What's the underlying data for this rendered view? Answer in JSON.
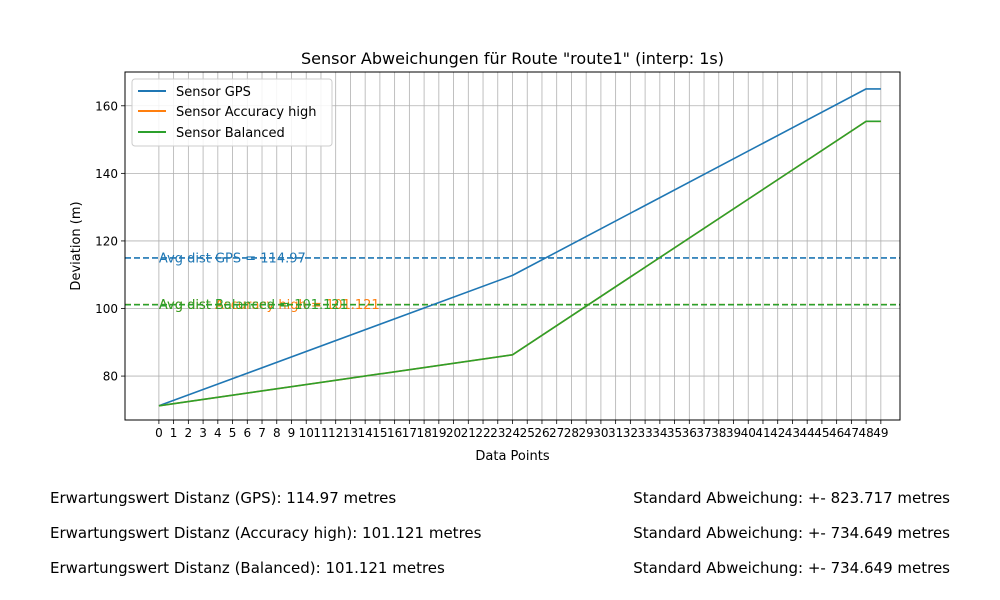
{
  "chart_data": {
    "type": "line",
    "title": "Sensor Abweichungen für Route \"route1\" (interp: 1s)",
    "xlabel": "Data Points",
    "ylabel": "Deviation (m)",
    "xlim": [
      -2.3,
      50.3
    ],
    "ylim": [
      67,
      170
    ],
    "x_ticks": [
      0,
      1,
      2,
      3,
      4,
      5,
      6,
      7,
      8,
      9,
      10,
      11,
      12,
      13,
      14,
      15,
      16,
      17,
      18,
      19,
      20,
      21,
      22,
      23,
      24,
      25,
      26,
      27,
      28,
      29,
      30,
      31,
      32,
      33,
      34,
      35,
      36,
      37,
      38,
      39,
      40,
      41,
      42,
      43,
      44,
      45,
      46,
      47,
      48,
      49
    ],
    "y_ticks": [
      80,
      100,
      120,
      140,
      160
    ],
    "grid": true,
    "legend_position": "upper-left",
    "series": [
      {
        "name": "Sensor GPS",
        "color": "#1f77b4",
        "x": [
          0,
          24,
          48,
          49
        ],
        "y": [
          71.2,
          109.8,
          165.0,
          165.0
        ]
      },
      {
        "name": "Sensor Accuracy high",
        "color": "#ff7f0e",
        "x": [
          0,
          24,
          48,
          49
        ],
        "y": [
          71.2,
          86.3,
          155.4,
          155.4
        ]
      },
      {
        "name": "Sensor Balanced",
        "color": "#2ca02c",
        "x": [
          0,
          24,
          48,
          49
        ],
        "y": [
          71.2,
          86.3,
          155.4,
          155.4
        ]
      }
    ],
    "reference_lines": [
      {
        "y": 114.97,
        "color": "#1f77b4",
        "label": "Avg dist GPS = 114.97"
      },
      {
        "y": 101.121,
        "color": "#ff7f0e",
        "label": "Avg dist Accuracy high = 101.121"
      },
      {
        "y": 101.121,
        "color": "#2ca02c",
        "label": "Avg dist Balanced = 101.121"
      }
    ]
  },
  "stats": [
    {
      "expectation": "Erwartungswert Distanz (GPS): 114.97 metres",
      "deviation": "Standard Abweichung: +- 823.717 metres"
    },
    {
      "expectation": "Erwartungswert Distanz (Accuracy high): 101.121 metres",
      "deviation": "Standard Abweichung: +- 734.649 metres"
    },
    {
      "expectation": "Erwartungswert Distanz (Balanced): 101.121 metres",
      "deviation": "Standard Abweichung: +- 734.649 metres"
    }
  ]
}
